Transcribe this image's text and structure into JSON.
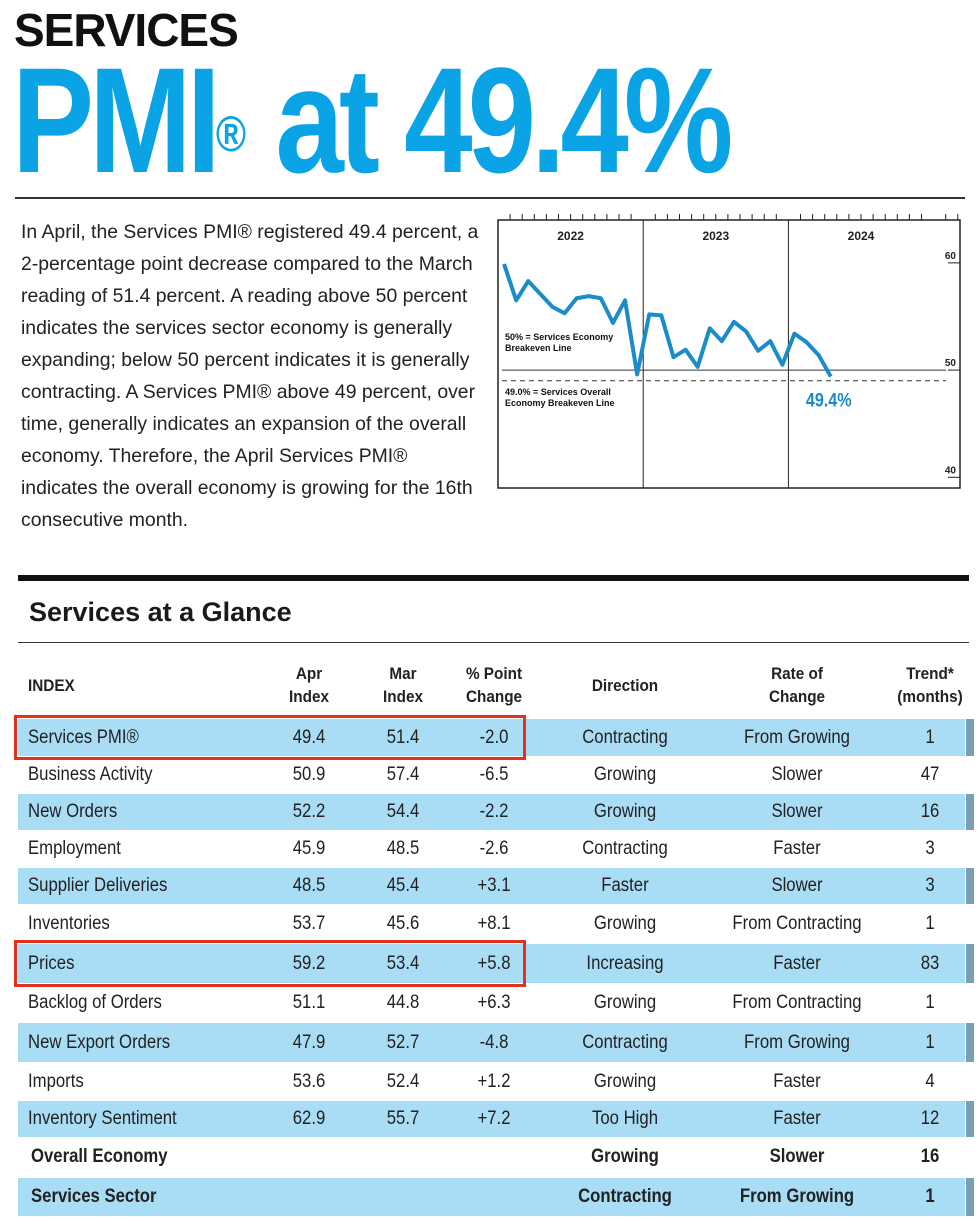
{
  "header": {
    "kicker": "SERVICES",
    "title_main": "PMI",
    "title_mark": "®",
    "title_rest": "at 49.4%"
  },
  "summary": "In April, the Services PMI® registered 49.4 percent, a 2-percentage point decrease compared to the March reading of 51.4 percent. A reading above 50 percent indicates the services sector economy is generally expanding; below 50 percent indicates it is generally contracting. A Services PMI® above 49 percent, over time, generally indicates an expansion of the overall economy. Therefore, the April Services PMI® indicates the overall economy is growing for the 16th consecutive month.",
  "chart_data": {
    "type": "line",
    "categories": [
      "2022",
      null,
      null,
      null,
      null,
      null,
      null,
      null,
      null,
      null,
      null,
      null,
      "2023",
      null,
      null,
      null,
      null,
      null,
      null,
      null,
      null,
      null,
      null,
      null,
      "2024",
      null,
      null,
      null
    ],
    "series": [
      {
        "name": "Services PMI",
        "color": "#1b8bc9",
        "values": [
          59.9,
          56.5,
          58.3,
          57.1,
          55.9,
          55.3,
          56.7,
          56.9,
          56.7,
          54.4,
          56.5,
          49.6,
          55.2,
          55.1,
          51.2,
          51.9,
          50.3,
          53.9,
          52.7,
          54.5,
          53.6,
          51.8,
          52.7,
          50.5,
          53.4,
          52.6,
          51.4,
          49.4
        ],
        "value_labels": [
          null,
          null,
          null,
          null,
          null,
          null,
          null,
          null,
          null,
          null,
          null,
          null,
          null,
          null,
          null,
          null,
          null,
          null,
          null,
          null,
          null,
          null,
          null,
          null,
          null,
          null,
          null,
          "49.4%"
        ]
      }
    ],
    "ylim": [
      39,
      64
    ],
    "yticks": [
      40,
      50,
      60
    ],
    "reference_lines": [
      {
        "value": 50,
        "label": "50% = Services Economy Breakeven Line",
        "style": "solid"
      },
      {
        "value": 49,
        "label": "49.0% = Services Overall Economy Breakeven Line",
        "style": "dashed"
      }
    ]
  },
  "table": {
    "title": "Services at a Glance",
    "columns": [
      [
        "INDEX"
      ],
      [
        "Apr",
        "Index"
      ],
      [
        "Mar",
        "Index"
      ],
      [
        "% Point",
        "Change"
      ],
      [
        "Direction"
      ],
      [
        "Rate of",
        "Change"
      ],
      [
        "Trend*",
        "(months)"
      ]
    ],
    "rows": [
      {
        "index": "Services PMI®",
        "apr": "49.4",
        "mar": "51.4",
        "change": "-2.0",
        "direction": "Contracting",
        "rate": "From Growing",
        "trend": 1
      },
      {
        "index": "Business Activity",
        "apr": "50.9",
        "mar": "57.4",
        "change": "-6.5",
        "direction": "Growing",
        "rate": "Slower",
        "trend": 47
      },
      {
        "index": "New Orders",
        "apr": "52.2",
        "mar": "54.4",
        "change": "-2.2",
        "direction": "Growing",
        "rate": "Slower",
        "trend": 16
      },
      {
        "index": "Employment",
        "apr": "45.9",
        "mar": "48.5",
        "change": "-2.6",
        "direction": "Contracting",
        "rate": "Faster",
        "trend": 3
      },
      {
        "index": "Supplier Deliveries",
        "apr": "48.5",
        "mar": "45.4",
        "change": "+3.1",
        "direction": "Faster",
        "rate": "Slower",
        "trend": 3
      },
      {
        "index": "Inventories",
        "apr": "53.7",
        "mar": "45.6",
        "change": "+8.1",
        "direction": "Growing",
        "rate": "From Contracting",
        "trend": 1
      },
      {
        "index": "Prices",
        "apr": "59.2",
        "mar": "53.4",
        "change": "+5.8",
        "direction": "Increasing",
        "rate": "Faster",
        "trend": 83
      },
      {
        "index": "Backlog of Orders",
        "apr": "51.1",
        "mar": "44.8",
        "change": "+6.3",
        "direction": "Growing",
        "rate": "From Contracting",
        "trend": 1
      },
      {
        "index": "New Export Orders",
        "apr": "47.9",
        "mar": "52.7",
        "change": "-4.8",
        "direction": "Contracting",
        "rate": "From Growing",
        "trend": 1
      },
      {
        "index": "Imports",
        "apr": "53.6",
        "mar": "52.4",
        "change": "+1.2",
        "direction": "Growing",
        "rate": "Faster",
        "trend": 4
      },
      {
        "index": "Inventory Sentiment",
        "apr": "62.9",
        "mar": "55.7",
        "change": "+7.2",
        "direction": "Too High",
        "rate": "Faster",
        "trend": 12
      },
      {
        "index": "Overall Economy",
        "direction": "Growing",
        "rate": "Slower",
        "trend": 16,
        "bold": true
      },
      {
        "index": "Services Sector",
        "direction": "Contracting",
        "rate": "From Growing",
        "trend": 1,
        "bold": true
      }
    ],
    "highlighted_rows": [
      0,
      6
    ]
  }
}
